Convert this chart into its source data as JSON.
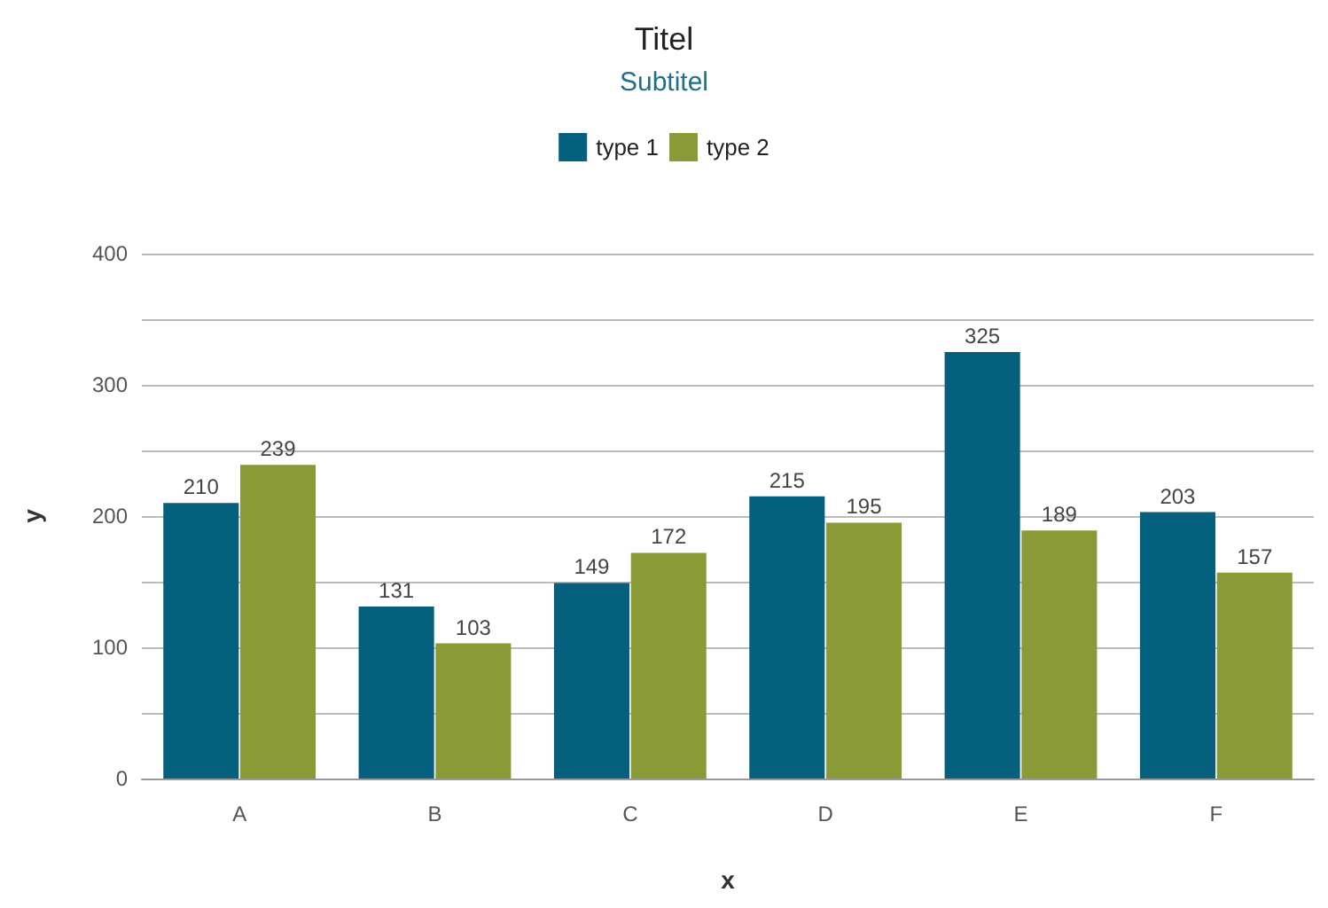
{
  "chart_data": {
    "type": "bar",
    "title": "Titel",
    "subtitle": "Subtitel",
    "xlabel": "x",
    "ylabel": "y",
    "categories": [
      "A",
      "B",
      "C",
      "D",
      "E",
      "F"
    ],
    "series": [
      {
        "name": "type 1",
        "color": "#05607e",
        "values": [
          210,
          131,
          149,
          215,
          325,
          203
        ]
      },
      {
        "name": "type 2",
        "color": "#8a9a37",
        "values": [
          239,
          103,
          172,
          195,
          189,
          157
        ]
      }
    ],
    "ylim": [
      0,
      400
    ],
    "yticks": [
      0,
      {
        "value": 50,
        "label": null
      },
      100,
      {
        "value": 150,
        "label": null
      },
      200,
      {
        "value": 250,
        "label": null
      },
      300,
      {
        "value": 350,
        "label": null
      },
      400
    ],
    "grid": "y",
    "legend": "top",
    "data_labels": true
  }
}
